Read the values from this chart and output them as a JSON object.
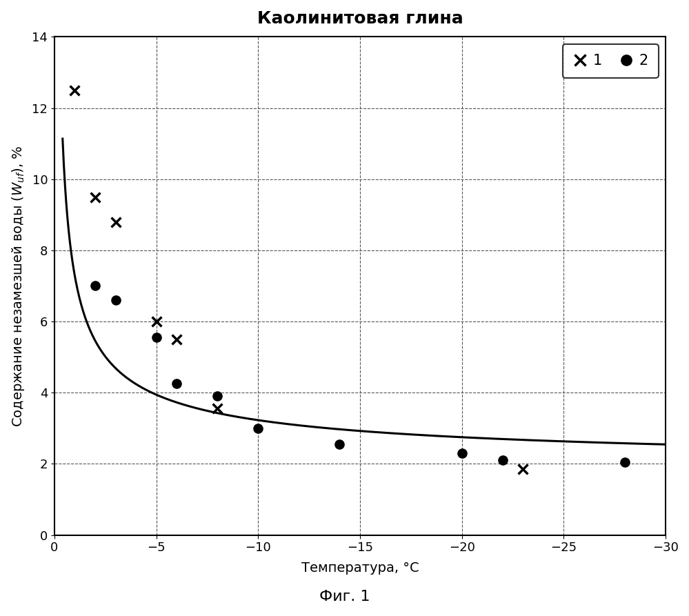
{
  "title": "Каолинитовая глина",
  "xlabel": "Температура, °C",
  "ylabel": "Содержание незамезшей воды (Wᵤf), %",
  "figcaption": "Фиг. 1",
  "xlim_left": 0,
  "xlim_right": -30,
  "ylim_bottom": 0,
  "ylim_top": 14,
  "xticks": [
    0,
    -5,
    -10,
    -15,
    -20,
    -25,
    -30
  ],
  "yticks": [
    0,
    2,
    4,
    6,
    8,
    10,
    12,
    14
  ],
  "series1_x": [
    -1,
    -2,
    -3,
    -5,
    -6,
    -8,
    -23
  ],
  "series1_y": [
    12.5,
    9.5,
    8.8,
    6.0,
    5.5,
    3.55,
    1.85
  ],
  "series2_x": [
    -2,
    -3,
    -5,
    -6,
    -8,
    -10,
    -14,
    -20,
    -22,
    -28
  ],
  "series2_y": [
    7.0,
    6.6,
    5.55,
    4.25,
    3.9,
    3.0,
    2.55,
    2.3,
    2.1,
    2.05
  ],
  "curve_A": 5.5,
  "curve_B": 0.58,
  "curve_C": 1.78,
  "background_color": "#ffffff",
  "grid_h_color": "#555555",
  "grid_v_color": "#555555",
  "line_color": "#000000",
  "marker1_color": "#000000",
  "marker2_color": "#000000",
  "title_fontsize": 18,
  "label_fontsize": 14,
  "tick_fontsize": 13,
  "legend_fontsize": 15,
  "caption_fontsize": 16
}
